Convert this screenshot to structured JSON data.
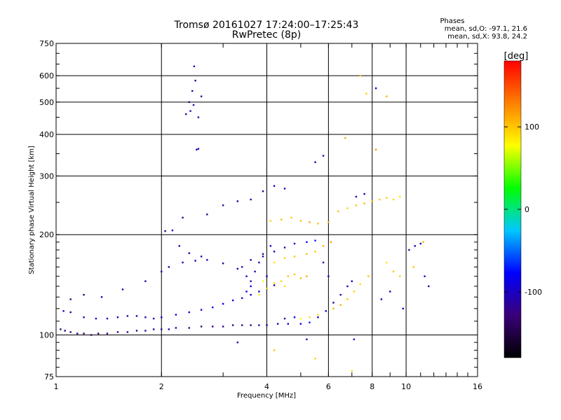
{
  "chart_data": {
    "type": "scatter",
    "title": "Tromsø 20161027 17:24:00–17:25:43",
    "subtitle": "RwPretec (8p)",
    "xlabel": "Frequency [MHz]",
    "ylabel": "Stationary phase Virtual Height [km]",
    "x_scale": "log",
    "y_scale": "log",
    "xlim": [
      1,
      16
    ],
    "ylim": [
      75,
      750
    ],
    "x_ticks": [
      1,
      2,
      4,
      6,
      8,
      10,
      16
    ],
    "x_tick_labels": [
      "1",
      "2",
      "4",
      "6",
      "8",
      "10",
      "16"
    ],
    "y_ticks": [
      75,
      100,
      200,
      300,
      400,
      500,
      600,
      750
    ],
    "y_tick_labels": [
      "75",
      "100",
      "200",
      "300",
      "400",
      "500",
      "600",
      "750"
    ],
    "grid": true,
    "phase_box": {
      "heading": "Phases",
      "line_o": "mean, sd,O: -97.1, 21.6",
      "line_x": "mean, sd,X:  93.8, 24.2"
    },
    "colorbar": {
      "label": "[deg]",
      "range": [
        -180,
        180
      ],
      "ticks": [
        100,
        0,
        -100
      ],
      "tick_labels": [
        "100",
        "0",
        "-100"
      ],
      "colors": [
        "#000000",
        "#3a0078",
        "#0000ff",
        "#00c8ff",
        "#00ff00",
        "#ffff00",
        "#ff8000",
        "#ff0000"
      ]
    },
    "series": [
      {
        "values": [
          [
            1.03,
            104,
            -125
          ],
          [
            1.06,
            103,
            -120
          ],
          [
            1.1,
            102,
            -118
          ],
          [
            1.15,
            101,
            -122
          ],
          [
            1.2,
            101,
            -130
          ],
          [
            1.26,
            100,
            -135
          ],
          [
            1.32,
            101,
            -132
          ],
          [
            1.4,
            101,
            -128
          ],
          [
            1.5,
            102,
            -125
          ],
          [
            1.6,
            102,
            -120
          ],
          [
            1.7,
            103,
            -118
          ],
          [
            1.8,
            103,
            -115
          ],
          [
            1.9,
            104,
            -112
          ],
          [
            2.0,
            104,
            -110
          ],
          [
            2.1,
            104,
            -115
          ],
          [
            2.2,
            105,
            -118
          ],
          [
            2.4,
            105,
            -120
          ],
          [
            2.6,
            106,
            -122
          ],
          [
            2.8,
            106,
            -125
          ],
          [
            3.0,
            106,
            -120
          ],
          [
            3.2,
            107,
            -118
          ],
          [
            3.4,
            107,
            -122
          ],
          [
            3.6,
            107,
            -125
          ],
          [
            3.8,
            107,
            -118
          ],
          [
            4.0,
            107,
            -110
          ],
          [
            4.3,
            108,
            -105
          ],
          [
            4.6,
            108,
            -100
          ],
          [
            5.0,
            108,
            -90
          ],
          [
            5.3,
            109,
            -70
          ]
        ]
      },
      {
        "values": [
          [
            1.05,
            118,
            -110
          ],
          [
            1.1,
            117,
            -105
          ],
          [
            1.2,
            113,
            -115
          ],
          [
            1.3,
            112,
            -110
          ],
          [
            1.4,
            112,
            -105
          ],
          [
            1.5,
            113,
            -100
          ],
          [
            1.6,
            114,
            -110
          ],
          [
            1.7,
            114,
            -115
          ],
          [
            1.8,
            113,
            -108
          ],
          [
            1.9,
            112,
            -105
          ],
          [
            2.0,
            113,
            -100
          ],
          [
            2.2,
            115,
            -95
          ],
          [
            2.4,
            117,
            -92
          ],
          [
            2.6,
            119,
            -88
          ],
          [
            2.8,
            121,
            -85
          ],
          [
            3.0,
            124,
            -80
          ],
          [
            3.2,
            127,
            -90
          ],
          [
            3.4,
            129,
            -95
          ],
          [
            3.6,
            132,
            -100
          ],
          [
            3.8,
            135,
            -105
          ],
          [
            4.0,
            138,
            -110
          ],
          [
            4.2,
            141,
            -115
          ]
        ]
      },
      {
        "values": [
          [
            1.1,
            128,
            -120
          ],
          [
            1.2,
            132,
            -125
          ],
          [
            1.35,
            130,
            -118
          ],
          [
            1.55,
            137,
            -120
          ],
          [
            1.8,
            145,
            -115
          ],
          [
            2.0,
            155,
            -112
          ],
          [
            2.1,
            160,
            -110
          ],
          [
            2.3,
            165,
            -108
          ],
          [
            2.5,
            167,
            -112
          ],
          [
            2.7,
            168,
            -110
          ],
          [
            3.0,
            164,
            -115
          ],
          [
            3.3,
            158,
            -112
          ],
          [
            3.6,
            168,
            -110
          ],
          [
            3.9,
            172,
            -108
          ],
          [
            4.2,
            178,
            -105
          ],
          [
            4.5,
            183,
            -100
          ],
          [
            4.8,
            188,
            -95
          ],
          [
            5.2,
            190,
            -80
          ],
          [
            5.5,
            192,
            -70
          ]
        ]
      },
      {
        "values": [
          [
            2.05,
            205,
            -110
          ],
          [
            2.15,
            206,
            -105
          ],
          [
            2.25,
            185,
            -100
          ],
          [
            2.4,
            176,
            -110
          ],
          [
            2.6,
            172,
            -112
          ],
          [
            2.3,
            225,
            -115
          ],
          [
            2.7,
            230,
            -118
          ],
          [
            3.0,
            245,
            -120
          ],
          [
            3.3,
            252,
            -115
          ],
          [
            3.6,
            255,
            -112
          ],
          [
            3.9,
            270,
            -108
          ],
          [
            4.2,
            280,
            -105
          ],
          [
            4.5,
            275,
            -100
          ]
        ]
      },
      {
        "values": [
          [
            2.35,
            460,
            -120
          ],
          [
            2.4,
            500,
            -115
          ],
          [
            2.45,
            540,
            -118
          ],
          [
            2.5,
            580,
            -110
          ],
          [
            2.42,
            470,
            -112
          ],
          [
            2.47,
            490,
            -115
          ],
          [
            2.55,
            450,
            -110
          ],
          [
            2.52,
            360,
            -105
          ],
          [
            2.55,
            362,
            -100
          ],
          [
            2.48,
            640,
            -110
          ],
          [
            2.6,
            520,
            -115
          ]
        ]
      },
      {
        "values": [
          [
            3.4,
            160,
            -105
          ],
          [
            3.5,
            150,
            -100
          ],
          [
            3.6,
            145,
            -110
          ],
          [
            3.7,
            155,
            -115
          ],
          [
            3.8,
            165,
            -118
          ],
          [
            3.9,
            175,
            -112
          ],
          [
            4.0,
            150,
            -100
          ],
          [
            3.5,
            135,
            -90
          ],
          [
            3.6,
            140,
            -85
          ],
          [
            4.1,
            185,
            -95
          ]
        ]
      },
      {
        "values": [
          [
            3.8,
            132,
            80
          ],
          [
            4.0,
            138,
            85
          ],
          [
            4.2,
            143,
            90
          ],
          [
            4.4,
            145,
            95
          ],
          [
            4.6,
            150,
            100
          ],
          [
            4.8,
            152,
            100
          ],
          [
            5.0,
            148,
            105
          ],
          [
            5.2,
            150,
            110
          ],
          [
            3.9,
            145,
            75
          ],
          [
            4.5,
            140,
            90
          ]
        ]
      },
      {
        "values": [
          [
            4.1,
            220,
            95
          ],
          [
            4.4,
            222,
            100
          ],
          [
            4.7,
            225,
            100
          ],
          [
            5.0,
            220,
            105
          ],
          [
            5.3,
            218,
            110
          ],
          [
            5.6,
            216,
            105
          ],
          [
            6.0,
            218,
            110
          ],
          [
            6.4,
            235,
            100
          ],
          [
            6.8,
            240,
            95
          ],
          [
            7.2,
            245,
            100
          ],
          [
            7.6,
            248,
            105
          ],
          [
            8.0,
            252,
            108
          ],
          [
            8.4,
            255,
            100
          ],
          [
            8.8,
            258,
            95
          ],
          [
            9.2,
            255,
            90
          ],
          [
            9.6,
            260,
            85
          ]
        ]
      },
      {
        "values": [
          [
            4.2,
            165,
            90
          ],
          [
            4.5,
            170,
            95
          ],
          [
            4.8,
            172,
            100
          ],
          [
            5.2,
            175,
            105
          ],
          [
            5.5,
            178,
            100
          ],
          [
            5.8,
            185,
            110
          ],
          [
            6.1,
            190,
            115
          ]
        ]
      },
      {
        "values": [
          [
            4.5,
            112,
            -100
          ],
          [
            4.8,
            113,
            -95
          ],
          [
            5.0,
            112,
            80
          ],
          [
            5.3,
            113,
            90
          ],
          [
            5.6,
            115,
            95
          ],
          [
            5.9,
            118,
            100
          ],
          [
            6.2,
            120,
            105
          ],
          [
            6.5,
            123,
            110
          ],
          [
            6.8,
            128,
            100
          ],
          [
            7.1,
            135,
            95
          ],
          [
            7.4,
            142,
            90
          ],
          [
            7.8,
            150,
            100
          ]
        ]
      },
      {
        "values": [
          [
            5.6,
            113,
            -100
          ],
          [
            5.9,
            118,
            -105
          ],
          [
            6.2,
            125,
            -110
          ],
          [
            6.5,
            132,
            -115
          ],
          [
            6.8,
            140,
            -112
          ],
          [
            7.0,
            145,
            -108
          ],
          [
            5.8,
            165,
            -100
          ],
          [
            6.0,
            150,
            -95
          ],
          [
            7.2,
            260,
            -100
          ],
          [
            7.6,
            265,
            -105
          ]
        ]
      },
      {
        "values": [
          [
            3.3,
            95,
            -100
          ],
          [
            4.2,
            90,
            100
          ],
          [
            5.2,
            97,
            -110
          ],
          [
            5.5,
            85,
            95
          ],
          [
            7.1,
            97,
            -105
          ],
          [
            7.0,
            78,
            90
          ],
          [
            6.7,
            390,
            110
          ],
          [
            7.4,
            600,
            100
          ],
          [
            7.7,
            530,
            95
          ],
          [
            8.2,
            550,
            -100
          ],
          [
            8.8,
            520,
            110
          ],
          [
            8.2,
            360,
            120
          ],
          [
            5.5,
            330,
            -110
          ],
          [
            5.8,
            345,
            -105
          ]
        ]
      },
      {
        "values": [
          [
            8.8,
            165,
            90
          ],
          [
            9.2,
            155,
            100
          ],
          [
            9.6,
            150,
            95
          ],
          [
            10.2,
            180,
            -110
          ],
          [
            10.6,
            185,
            -105
          ],
          [
            11.0,
            188,
            -100
          ],
          [
            10.5,
            160,
            100
          ],
          [
            11.3,
            150,
            -95
          ],
          [
            11.6,
            140,
            -100
          ],
          [
            9.0,
            135,
            -105
          ],
          [
            8.5,
            128,
            -110
          ],
          [
            9.8,
            120,
            -100
          ],
          [
            11.2,
            190,
            110
          ]
        ]
      }
    ]
  }
}
